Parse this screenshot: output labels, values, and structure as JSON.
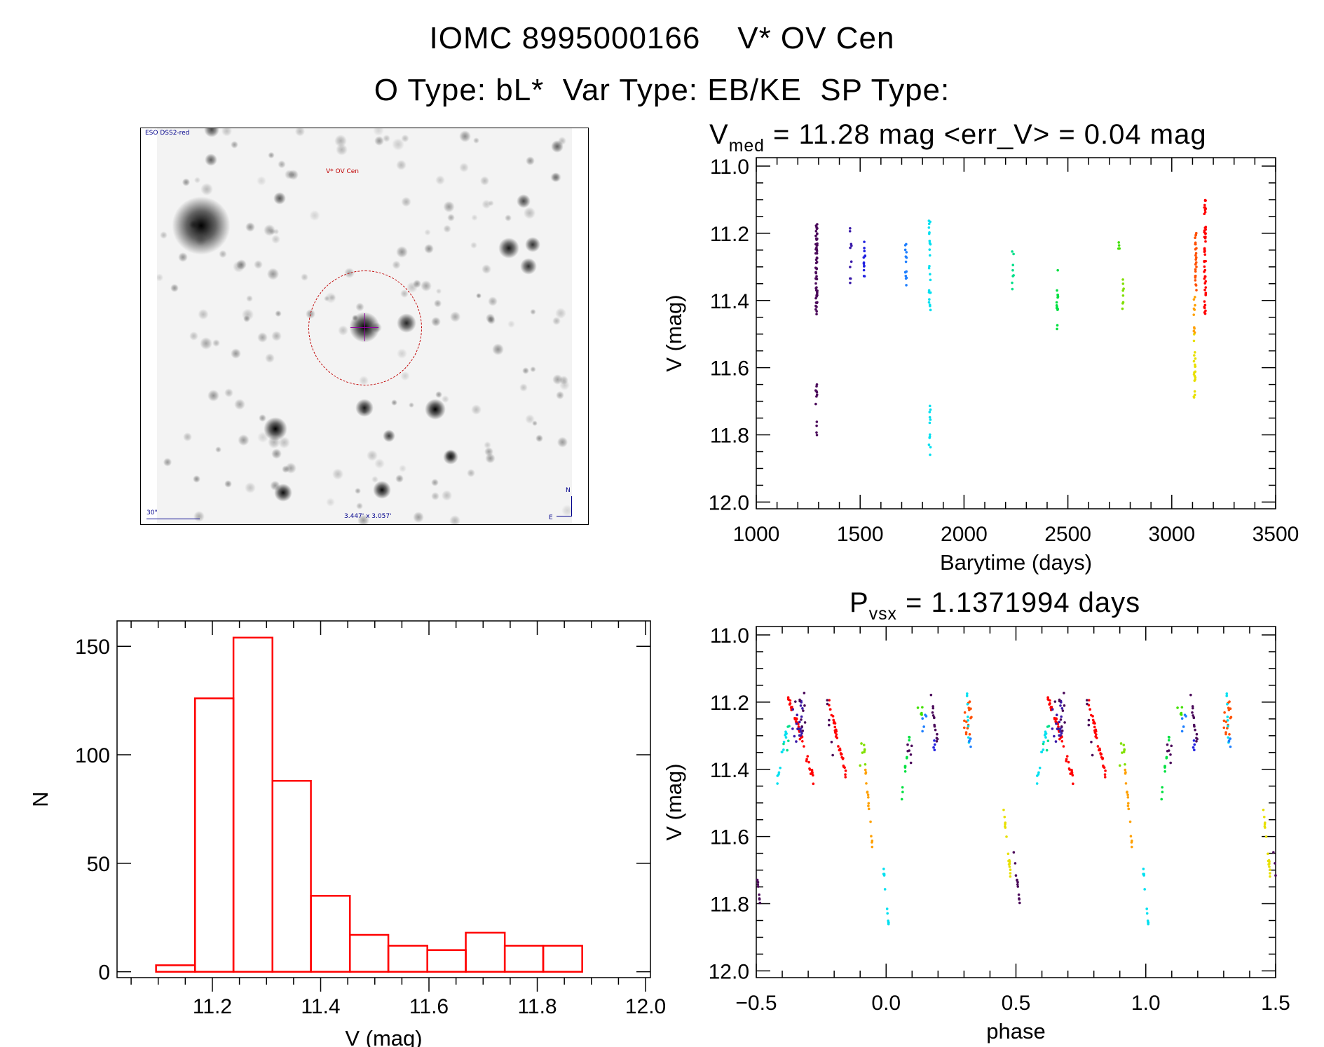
{
  "header": {
    "line1": "IOMC 8995000166    V* OV Cen",
    "line2": "O Type: bL*  Var Type: EB/KE  SP Type:"
  },
  "finder": {
    "survey_label": "ESO DSS2-red",
    "target_label": "V* OV Cen",
    "scale_label": "30\"",
    "fov_label": "3.447' x 3.057'",
    "north_label": "N",
    "east_label": "E"
  },
  "lightcurve_title": {
    "prefix": "V",
    "sub": "med",
    "rest": " = 11.28 mag <err_V> = 0.04 mag"
  },
  "phase_title": {
    "prefix": "P",
    "sub": "vsx",
    "rest": " = 1.1371994 days"
  },
  "colors": {
    "hist": "#ff0000",
    "axis": "#000000"
  },
  "chart_data": [
    {
      "type": "scatter",
      "name": "lightcurve",
      "xlabel": "Barytime (days)",
      "ylabel": "V (mag)",
      "xlim": [
        1000,
        3500
      ],
      "ylim": [
        10.975,
        12.02
      ],
      "y_inverted": true,
      "xticks": [
        1000,
        1500,
        2000,
        2500,
        3000,
        3500
      ],
      "xtick_labels": [
        "1000",
        "1500",
        "2000",
        "2500",
        "3000",
        "3500"
      ],
      "yticks": [
        11.0,
        11.2,
        11.4,
        11.6,
        11.8,
        12.0
      ],
      "ytick_labels": [
        "11.0",
        "11.2",
        "11.4",
        "11.6",
        "11.8",
        "12.0"
      ],
      "clusters": [
        {
          "t": 1290,
          "mag": [
            11.17,
            11.45
          ],
          "n": 60,
          "color": "#4b0a5a"
        },
        {
          "t": 1290,
          "mag": [
            11.65,
            11.82
          ],
          "n": 12,
          "color": "#4b0a5a"
        },
        {
          "t": 1455,
          "mag": [
            11.18,
            11.39
          ],
          "n": 10,
          "color": "#3a1aa8"
        },
        {
          "t": 1520,
          "mag": [
            11.22,
            11.34
          ],
          "n": 14,
          "color": "#2020e0"
        },
        {
          "t": 1720,
          "mag": [
            11.23,
            11.36
          ],
          "n": 14,
          "color": "#1e7fff"
        },
        {
          "t": 1835,
          "mag": [
            11.15,
            11.44
          ],
          "n": 25,
          "color": "#00e0f0"
        },
        {
          "t": 1835,
          "mag": [
            11.7,
            11.87
          ],
          "n": 12,
          "color": "#00e0f0"
        },
        {
          "t": 2235,
          "mag": [
            11.25,
            11.37
          ],
          "n": 8,
          "color": "#00e08a"
        },
        {
          "t": 2450,
          "mag": [
            11.3,
            11.49
          ],
          "n": 14,
          "color": "#00e040"
        },
        {
          "t": 2745,
          "mag": [
            11.22,
            11.25
          ],
          "n": 4,
          "color": "#40e000"
        },
        {
          "t": 2765,
          "mag": [
            11.33,
            11.43
          ],
          "n": 8,
          "color": "#80e000"
        },
        {
          "t": 3110,
          "mag": [
            11.5,
            11.72
          ],
          "n": 20,
          "color": "#e8e000"
        },
        {
          "t": 3110,
          "mag": [
            11.38,
            11.5
          ],
          "n": 10,
          "color": "#ffa000"
        },
        {
          "t": 3115,
          "mag": [
            11.19,
            11.38
          ],
          "n": 25,
          "color": "#ff5000"
        },
        {
          "t": 3160,
          "mag": [
            11.1,
            11.45
          ],
          "n": 50,
          "color": "#ff0000"
        }
      ]
    },
    {
      "type": "bar",
      "name": "histogram",
      "xlabel": "V (mag)",
      "ylabel": "N",
      "xlim": [
        11.024,
        12.009
      ],
      "ylim": [
        -2.7,
        161.7
      ],
      "bin_edges": [
        11.096,
        11.168,
        11.239,
        11.311,
        11.382,
        11.454,
        11.525,
        11.597,
        11.668,
        11.74,
        11.811,
        11.883
      ],
      "values": [
        3,
        126,
        154,
        88,
        35,
        17,
        12,
        10,
        18,
        12,
        12
      ],
      "xticks": [
        11.2,
        11.4,
        11.6,
        11.8,
        12.0
      ],
      "xtick_labels": [
        "11.2",
        "11.4",
        "11.6",
        "11.8",
        "12.0"
      ],
      "yticks": [
        0,
        50,
        100,
        150
      ],
      "ytick_labels": [
        "0",
        "50",
        "100",
        "150"
      ]
    },
    {
      "type": "scatter",
      "name": "phased",
      "xlabel": "phase",
      "ylabel": "V (mag)",
      "xlim": [
        -0.5,
        1.5
      ],
      "ylim": [
        10.975,
        12.02
      ],
      "y_inverted": true,
      "xticks": [
        -0.5,
        0.0,
        0.5,
        1.0,
        1.5
      ],
      "xtick_labels": [
        "−0.5",
        "0.0",
        "0.5",
        "1.0",
        "1.5"
      ],
      "yticks": [
        11.0,
        11.2,
        11.4,
        11.6,
        11.8,
        12.0
      ],
      "ytick_labels": [
        "11.0",
        "11.2",
        "11.4",
        "11.6",
        "11.8",
        "12.0"
      ],
      "clusters": [
        {
          "phase": [
            -0.42,
            -0.38
          ],
          "mag": [
            11.44,
            11.27
          ],
          "n": 14,
          "color": "#00e0f0"
        },
        {
          "phase": [
            -0.4,
            -0.37
          ],
          "mag": [
            11.34,
            11.27
          ],
          "n": 5,
          "color": "#00e08a"
        },
        {
          "phase": [
            -0.38,
            -0.28
          ],
          "mag": [
            11.17,
            11.43
          ],
          "n": 45,
          "color": "#ff0000"
        },
        {
          "phase": [
            -0.36,
            -0.32
          ],
          "mag": [
            11.2,
            11.32
          ],
          "n": 20,
          "color": "#3a1aa8"
        },
        {
          "phase": [
            -0.35,
            -0.31
          ],
          "mag": [
            11.17,
            11.3
          ],
          "n": 10,
          "color": "#4b0a5a"
        },
        {
          "phase": [
            -0.22,
            -0.15
          ],
          "mag": [
            11.2,
            11.43
          ],
          "n": 35,
          "color": "#ff0000"
        },
        {
          "phase": [
            -0.23,
            -0.2
          ],
          "mag": [
            11.18,
            11.4
          ],
          "n": 6,
          "color": "#4b0a5a"
        },
        {
          "phase": [
            -0.1,
            -0.08
          ],
          "mag": [
            11.33,
            11.4
          ],
          "n": 8,
          "color": "#80e000"
        },
        {
          "phase": [
            -0.08,
            -0.05
          ],
          "mag": [
            11.4,
            11.65
          ],
          "n": 16,
          "color": "#ffa000"
        },
        {
          "phase": [
            -0.01,
            0.01
          ],
          "mag": [
            11.7,
            11.86
          ],
          "n": 12,
          "color": "#00e0f0"
        },
        {
          "phase": [
            0.06,
            0.09
          ],
          "mag": [
            11.48,
            11.3
          ],
          "n": 12,
          "color": "#00e040"
        },
        {
          "phase": [
            0.08,
            0.1
          ],
          "mag": [
            11.38,
            11.3
          ],
          "n": 6,
          "color": "#4b0a5a"
        },
        {
          "phase": [
            0.12,
            0.14
          ],
          "mag": [
            11.25,
            11.22
          ],
          "n": 5,
          "color": "#40e000"
        },
        {
          "phase": [
            0.14,
            0.16
          ],
          "mag": [
            11.24,
            11.28
          ],
          "n": 5,
          "color": "#1e7fff"
        },
        {
          "phase": [
            0.17,
            0.2
          ],
          "mag": [
            11.17,
            11.33
          ],
          "n": 14,
          "color": "#4b0a5a"
        },
        {
          "phase": [
            0.18,
            0.2
          ],
          "mag": [
            11.3,
            11.34
          ],
          "n": 4,
          "color": "#2020e0"
        },
        {
          "phase": [
            0.3,
            0.33
          ],
          "mag": [
            11.2,
            11.3
          ],
          "n": 16,
          "color": "#ff5000"
        },
        {
          "phase": [
            0.31,
            0.32
          ],
          "mag": [
            11.15,
            11.35
          ],
          "n": 8,
          "color": "#00e0f0"
        },
        {
          "phase": [
            0.32,
            0.33
          ],
          "mag": [
            11.3,
            11.36
          ],
          "n": 4,
          "color": "#1e7fff"
        },
        {
          "phase": [
            0.45,
            0.48
          ],
          "mag": [
            11.5,
            11.72
          ],
          "n": 18,
          "color": "#e8e000"
        },
        {
          "phase": [
            0.49,
            0.52
          ],
          "mag": [
            11.65,
            11.82
          ],
          "n": 12,
          "color": "#4b0a5a"
        }
      ]
    }
  ]
}
